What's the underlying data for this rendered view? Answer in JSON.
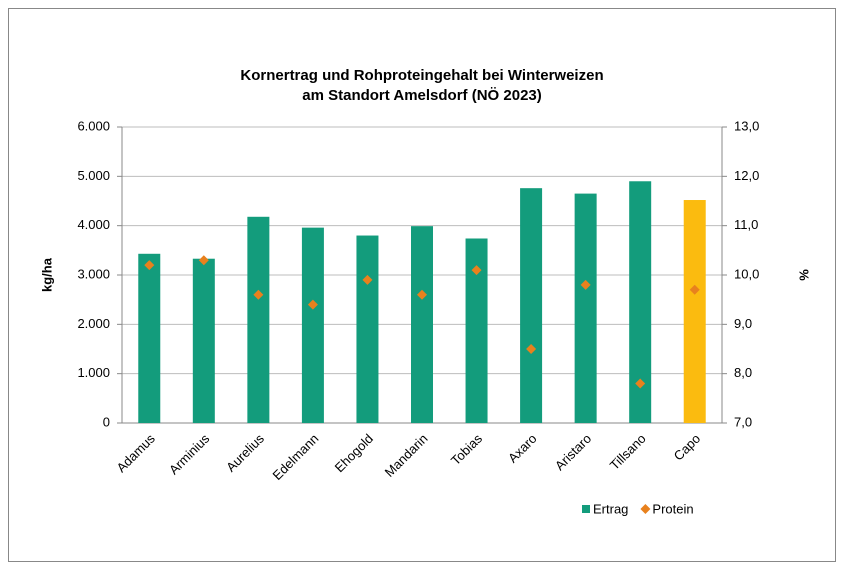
{
  "chart_data": {
    "type": "bar_with_points",
    "title": "Kornertrag und Rohproteingehalt bei Winterweizen",
    "subtitle": "am Standort Amelsdorf (NÖ 2023)",
    "ylabel": "kg/ha",
    "y2label": "%",
    "categories": [
      "Adamus",
      "Arminius",
      "Aurelius",
      "Edelmann",
      "Ehogold",
      "Mandarin",
      "Tobias",
      "Axaro",
      "Aristaro",
      "Tillsano",
      "Capo"
    ],
    "series": [
      {
        "name": "Ertrag",
        "type": "bar",
        "color": "#139c7c",
        "colors": [
          "#139c7c",
          "#139c7c",
          "#139c7c",
          "#139c7c",
          "#139c7c",
          "#139c7c",
          "#139c7c",
          "#139c7c",
          "#139c7c",
          "#139c7c",
          "#fbbb0f"
        ],
        "values": [
          3430,
          3330,
          4180,
          3960,
          3800,
          3990,
          3740,
          4760,
          4650,
          4900,
          4520
        ]
      },
      {
        "name": "Protein",
        "type": "point",
        "color": "#e8811d",
        "axis": "y2",
        "values": [
          10.2,
          10.3,
          9.6,
          9.4,
          9.9,
          9.6,
          10.1,
          8.5,
          9.8,
          7.8,
          9.7
        ]
      }
    ],
    "ylim": [
      0,
      6000
    ],
    "yticks": [
      0,
      {
        "value": 1000,
        "label": "1.000"
      },
      {
        "value": 2000,
        "label": "2.000"
      },
      {
        "value": 3000,
        "label": "3.000"
      },
      {
        "value": 4000,
        "label": "4.000"
      },
      {
        "value": 5000,
        "label": "5.000"
      },
      {
        "value": 6000,
        "label": "6.000"
      }
    ],
    "y2lim": [
      7,
      13
    ],
    "y2ticks": [
      {
        "value": 7,
        "label": "7,0"
      },
      {
        "value": 8,
        "label": "8,0"
      },
      {
        "value": 9,
        "label": "9,0"
      },
      {
        "value": 10,
        "label": "10,0"
      },
      {
        "value": 11,
        "label": "11,0"
      },
      {
        "value": 12,
        "label": "12,0"
      },
      {
        "value": 13,
        "label": "13,0"
      }
    ],
    "grid": true,
    "legend": "bottom-right"
  }
}
